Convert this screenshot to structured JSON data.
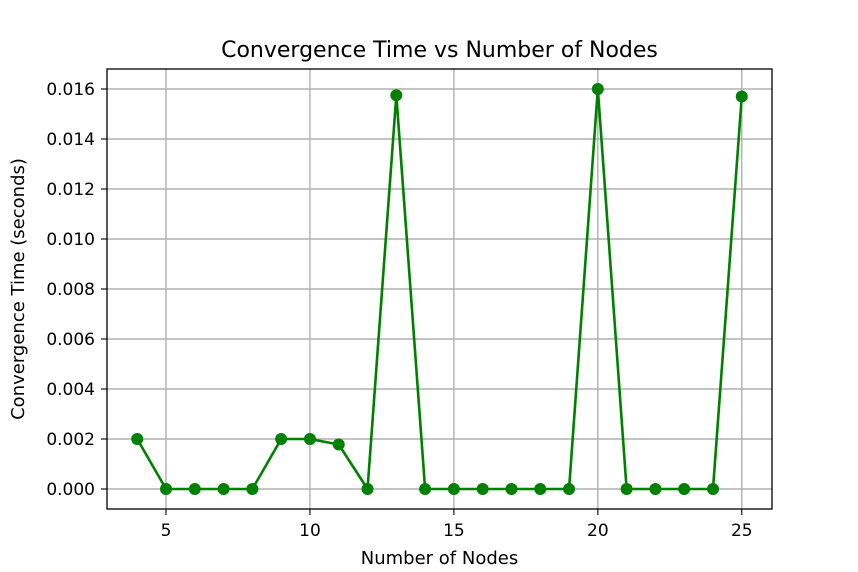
{
  "chart_data": {
    "type": "line",
    "title": "Convergence Time vs Number of Nodes",
    "xlabel": "Number of Nodes",
    "ylabel": "Convergence Time (seconds)",
    "x": [
      4,
      5,
      6,
      7,
      8,
      9,
      10,
      11,
      12,
      13,
      14,
      15,
      16,
      17,
      18,
      19,
      20,
      21,
      22,
      23,
      24,
      25
    ],
    "series": [
      {
        "values": [
          0.002,
          0.0,
          0.0,
          0.0,
          0.0,
          0.002,
          0.002,
          0.00178,
          0.0,
          0.01575,
          0.0,
          0.0,
          0.0,
          0.0,
          0.0,
          0.0,
          0.016,
          0.0,
          0.0,
          0.0,
          0.0,
          0.0157
        ],
        "color": "#008000",
        "marker": "circle"
      }
    ],
    "xlim": [
      2.95,
      26.05
    ],
    "ylim": [
      -0.0008,
      0.0168
    ],
    "xticks": [
      5,
      10,
      15,
      20,
      25
    ],
    "xtick_labels": [
      "5",
      "10",
      "15",
      "20",
      "25"
    ],
    "yticks": [
      0.0,
      0.002,
      0.004,
      0.006,
      0.008,
      0.01,
      0.012,
      0.014,
      0.016
    ],
    "ytick_labels": [
      "0.000",
      "0.002",
      "0.004",
      "0.006",
      "0.008",
      "0.010",
      "0.012",
      "0.014",
      "0.016"
    ],
    "grid": true
  }
}
